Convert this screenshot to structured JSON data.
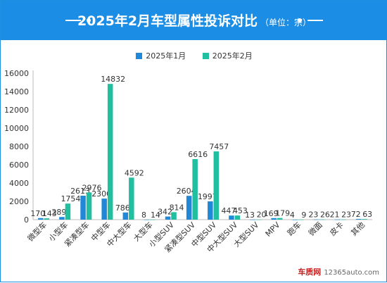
{
  "header": {
    "title": "2025年2月车型属性投诉对比",
    "unit": "（单位：宗）"
  },
  "colors": {
    "header_bg": "#1c8de4",
    "series_jan": "#1f88d8",
    "series_feb": "#1fbf9f"
  },
  "watermark": {
    "brand": "车质网",
    "site": "12365auto.com"
  },
  "chart_data": {
    "type": "bar",
    "title": "2025年2月车型属性投诉对比",
    "subtitle": "（单位：宗）",
    "categories": [
      "微型车",
      "小型车",
      "紧凑型车",
      "中型车",
      "中大型车",
      "大型车",
      "小型SUV",
      "紧凑型SUV",
      "中型SUV",
      "中大型SUV",
      "大型SUV",
      "MPV",
      "跑车",
      "微面",
      "皮卡",
      "其他"
    ],
    "series": [
      {
        "name": "2025年1月",
        "values": [
          170,
          289,
          2613,
          2300,
          786,
          8,
          342,
          2604,
          1997,
          447,
          13,
          169,
          4,
          23,
          21,
          72
        ]
      },
      {
        "name": "2025年2月",
        "values": [
          143,
          1754,
          2976,
          14832,
          4592,
          14,
          814,
          6616,
          7457,
          453,
          20,
          179,
          9,
          26,
          23,
          63
        ]
      }
    ],
    "yticks": [
      0,
      2000,
      4000,
      6000,
      8000,
      10000,
      12000,
      14000,
      16000
    ],
    "ylim": [
      0,
      16000
    ],
    "legend_position": "top-center",
    "grid": false
  }
}
